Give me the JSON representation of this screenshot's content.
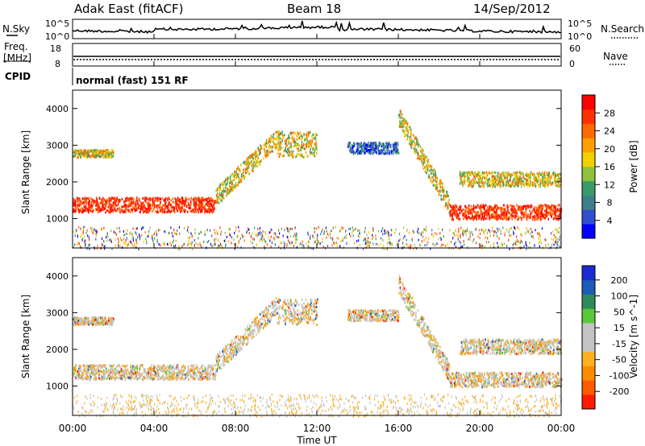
{
  "header": {
    "station": "Adak East (fitACF)",
    "beam": "Beam 18",
    "date": "14/Sep/2012"
  },
  "top_panels": {
    "nsky_label": "N.Sky",
    "nsky_ticks": [
      "10^5",
      "10^0"
    ],
    "nsearch_label": "N.Search",
    "freq_label_line1": "Freq.",
    "freq_label_line2": "[MHz]",
    "freq_ticks": [
      "18",
      "8"
    ],
    "nave_label": "Nave",
    "nave_ticks": [
      "60",
      "0"
    ],
    "cpid_label": "CPID",
    "cpid_text": "normal (fast) 151 RF"
  },
  "colors": {
    "power_scale": [
      "#0000ff",
      "#3050d0",
      "#3f7f8c",
      "#3a9a6a",
      "#8fc23a",
      "#f0d000",
      "#ffa000",
      "#ff6a00",
      "#ff3000",
      "#ff0000"
    ],
    "velocity_scale": [
      "#1a2ad0",
      "#1e5ab8",
      "#2e8a5a",
      "#5ac83a",
      "#c4c4c4",
      "#c4c4c4",
      "#ffb020",
      "#ff8c00",
      "#ff5a00",
      "#ff1a00"
    ]
  },
  "chart_data": [
    {
      "type": "heatmap",
      "name": "power-panel",
      "xlabel": "",
      "ylabel": "Slant Range [km]",
      "x_ticks": [
        "00:00",
        "04:00",
        "08:00",
        "12:00",
        "16:00",
        "20:00",
        "00:00"
      ],
      "y_ticks": [
        1000,
        2000,
        3000,
        4000
      ],
      "ylim": [
        200,
        4500
      ],
      "colorbar": {
        "label": "Power [dB]",
        "ticks": [
          4,
          8,
          12,
          16,
          20,
          24,
          28
        ],
        "range": [
          0,
          32
        ]
      },
      "features": [
        {
          "start_hr": 0,
          "end_hr": 7,
          "range_km": [
            1200,
            1600
          ],
          "level": "high"
        },
        {
          "start_hr": 7,
          "end_hr": 10,
          "range_km": [
            1600,
            3200
          ],
          "level": "medium"
        },
        {
          "start_hr": 10,
          "end_hr": 12,
          "range_km": [
            2700,
            3400
          ],
          "level": "medium"
        },
        {
          "start_hr": 13.5,
          "end_hr": 16,
          "range_km": [
            2800,
            3100
          ],
          "level": "low"
        },
        {
          "start_hr": 16,
          "end_hr": 18.5,
          "range_km": [
            1400,
            3800
          ],
          "level": "medium"
        },
        {
          "start_hr": 18.5,
          "end_hr": 24,
          "range_km": [
            1000,
            1400
          ],
          "level": "high"
        },
        {
          "start_hr": 0,
          "end_hr": 2,
          "range_km": [
            2700,
            2900
          ],
          "level": "medium"
        },
        {
          "start_hr": 19,
          "end_hr": 24,
          "range_km": [
            1900,
            2300
          ],
          "level": "medium"
        }
      ]
    },
    {
      "type": "heatmap",
      "name": "velocity-panel",
      "xlabel": "Time UT",
      "ylabel": "Slant Range [km]",
      "x_ticks": [
        "00:00",
        "04:00",
        "08:00",
        "12:00",
        "16:00",
        "20:00",
        "00:00"
      ],
      "y_ticks": [
        1000,
        2000,
        3000,
        4000
      ],
      "ylim": [
        200,
        4500
      ],
      "colorbar": {
        "label": "Velocity [m s^-1]",
        "ticks": [
          200,
          100,
          50,
          15,
          -15,
          -50,
          -100,
          -200
        ],
        "range": [
          -250,
          250
        ]
      }
    }
  ]
}
